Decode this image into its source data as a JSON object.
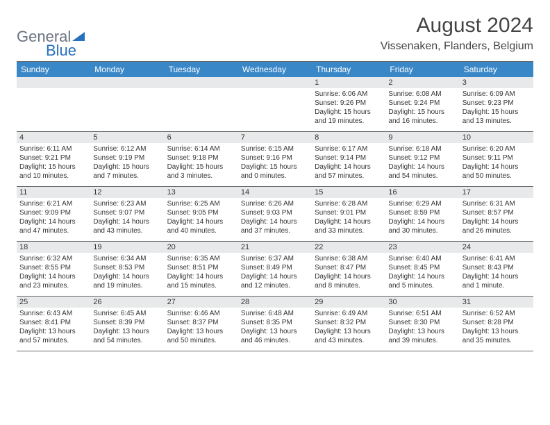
{
  "logo": {
    "general": "General",
    "blue": "Blue"
  },
  "title": "August 2024",
  "location": "Vissenaken, Flanders, Belgium",
  "colors": {
    "header_bg": "#3a87c8",
    "header_text": "#ffffff",
    "strip_bg": "#e8e9ea",
    "border": "#666666",
    "text": "#333333",
    "logo_gray": "#6b7280",
    "logo_blue": "#2770bb"
  },
  "weekdays": [
    "Sunday",
    "Monday",
    "Tuesday",
    "Wednesday",
    "Thursday",
    "Friday",
    "Saturday"
  ],
  "weeks": [
    [
      null,
      null,
      null,
      null,
      {
        "n": "1",
        "sr": "6:06 AM",
        "ss": "9:26 PM",
        "dl": "15 hours and 19 minutes."
      },
      {
        "n": "2",
        "sr": "6:08 AM",
        "ss": "9:24 PM",
        "dl": "15 hours and 16 minutes."
      },
      {
        "n": "3",
        "sr": "6:09 AM",
        "ss": "9:23 PM",
        "dl": "15 hours and 13 minutes."
      }
    ],
    [
      {
        "n": "4",
        "sr": "6:11 AM",
        "ss": "9:21 PM",
        "dl": "15 hours and 10 minutes."
      },
      {
        "n": "5",
        "sr": "6:12 AM",
        "ss": "9:19 PM",
        "dl": "15 hours and 7 minutes."
      },
      {
        "n": "6",
        "sr": "6:14 AM",
        "ss": "9:18 PM",
        "dl": "15 hours and 3 minutes."
      },
      {
        "n": "7",
        "sr": "6:15 AM",
        "ss": "9:16 PM",
        "dl": "15 hours and 0 minutes."
      },
      {
        "n": "8",
        "sr": "6:17 AM",
        "ss": "9:14 PM",
        "dl": "14 hours and 57 minutes."
      },
      {
        "n": "9",
        "sr": "6:18 AM",
        "ss": "9:12 PM",
        "dl": "14 hours and 54 minutes."
      },
      {
        "n": "10",
        "sr": "6:20 AM",
        "ss": "9:11 PM",
        "dl": "14 hours and 50 minutes."
      }
    ],
    [
      {
        "n": "11",
        "sr": "6:21 AM",
        "ss": "9:09 PM",
        "dl": "14 hours and 47 minutes."
      },
      {
        "n": "12",
        "sr": "6:23 AM",
        "ss": "9:07 PM",
        "dl": "14 hours and 43 minutes."
      },
      {
        "n": "13",
        "sr": "6:25 AM",
        "ss": "9:05 PM",
        "dl": "14 hours and 40 minutes."
      },
      {
        "n": "14",
        "sr": "6:26 AM",
        "ss": "9:03 PM",
        "dl": "14 hours and 37 minutes."
      },
      {
        "n": "15",
        "sr": "6:28 AM",
        "ss": "9:01 PM",
        "dl": "14 hours and 33 minutes."
      },
      {
        "n": "16",
        "sr": "6:29 AM",
        "ss": "8:59 PM",
        "dl": "14 hours and 30 minutes."
      },
      {
        "n": "17",
        "sr": "6:31 AM",
        "ss": "8:57 PM",
        "dl": "14 hours and 26 minutes."
      }
    ],
    [
      {
        "n": "18",
        "sr": "6:32 AM",
        "ss": "8:55 PM",
        "dl": "14 hours and 23 minutes."
      },
      {
        "n": "19",
        "sr": "6:34 AM",
        "ss": "8:53 PM",
        "dl": "14 hours and 19 minutes."
      },
      {
        "n": "20",
        "sr": "6:35 AM",
        "ss": "8:51 PM",
        "dl": "14 hours and 15 minutes."
      },
      {
        "n": "21",
        "sr": "6:37 AM",
        "ss": "8:49 PM",
        "dl": "14 hours and 12 minutes."
      },
      {
        "n": "22",
        "sr": "6:38 AM",
        "ss": "8:47 PM",
        "dl": "14 hours and 8 minutes."
      },
      {
        "n": "23",
        "sr": "6:40 AM",
        "ss": "8:45 PM",
        "dl": "14 hours and 5 minutes."
      },
      {
        "n": "24",
        "sr": "6:41 AM",
        "ss": "8:43 PM",
        "dl": "14 hours and 1 minute."
      }
    ],
    [
      {
        "n": "25",
        "sr": "6:43 AM",
        "ss": "8:41 PM",
        "dl": "13 hours and 57 minutes."
      },
      {
        "n": "26",
        "sr": "6:45 AM",
        "ss": "8:39 PM",
        "dl": "13 hours and 54 minutes."
      },
      {
        "n": "27",
        "sr": "6:46 AM",
        "ss": "8:37 PM",
        "dl": "13 hours and 50 minutes."
      },
      {
        "n": "28",
        "sr": "6:48 AM",
        "ss": "8:35 PM",
        "dl": "13 hours and 46 minutes."
      },
      {
        "n": "29",
        "sr": "6:49 AM",
        "ss": "8:32 PM",
        "dl": "13 hours and 43 minutes."
      },
      {
        "n": "30",
        "sr": "6:51 AM",
        "ss": "8:30 PM",
        "dl": "13 hours and 39 minutes."
      },
      {
        "n": "31",
        "sr": "6:52 AM",
        "ss": "8:28 PM",
        "dl": "13 hours and 35 minutes."
      }
    ]
  ],
  "labels": {
    "sunrise": "Sunrise: ",
    "sunset": "Sunset: ",
    "daylight": "Daylight: "
  }
}
